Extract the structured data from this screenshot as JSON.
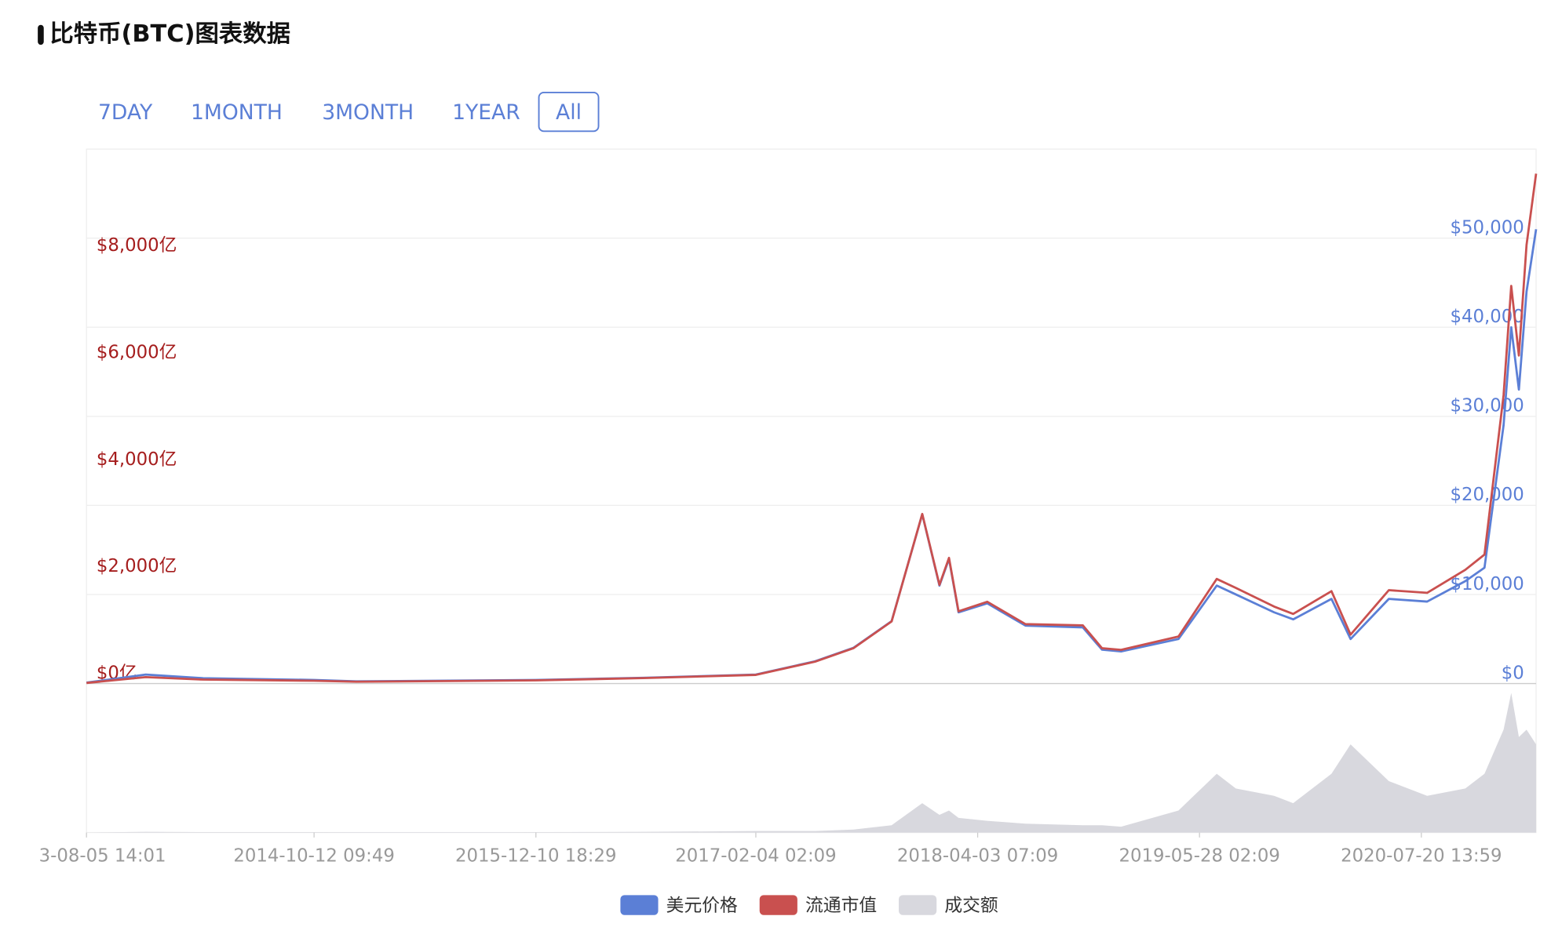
{
  "title": "比特币(BTC)图表数据",
  "tabs": [
    "7DAY",
    "1MONTH",
    "3MONTH",
    "1YEAR",
    "All"
  ],
  "active_tab": "All",
  "chart_data": {
    "type": "line",
    "x": [
      2013.59,
      2013.9,
      2014.2,
      2014.78,
      2015.0,
      2015.94,
      2016.5,
      2017.09,
      2017.4,
      2017.6,
      2017.8,
      2017.96,
      2018.05,
      2018.1,
      2018.15,
      2018.3,
      2018.5,
      2018.8,
      2018.9,
      2019.0,
      2019.3,
      2019.5,
      2019.6,
      2019.8,
      2019.9,
      2020.1,
      2020.2,
      2020.4,
      2020.6,
      2020.8,
      2020.9,
      2021.0,
      2021.04,
      2021.08,
      2021.12,
      2021.17
    ],
    "series": [
      {
        "name": "美元价格",
        "color": "#5b7fd6",
        "axis": "y2",
        "values": [
          100,
          1000,
          600,
          400,
          250,
          400,
          650,
          1000,
          2500,
          4000,
          7000,
          19000,
          11000,
          14000,
          8000,
          9000,
          6500,
          6300,
          3800,
          3600,
          5000,
          11000,
          10000,
          8000,
          7200,
          9500,
          5000,
          9500,
          9200,
          11500,
          13000,
          29000,
          40000,
          33000,
          44000,
          51000
        ]
      },
      {
        "name": "流通市值",
        "color": "#c9504f",
        "values": [
          12,
          120,
          75,
          52,
          34,
          60,
          103,
          162,
          408,
          660,
          1162,
          3173,
          1848,
          2352,
          1352,
          1530,
          1112,
          1090,
          661,
          630,
          880,
          1958,
          1790,
          1440,
          1303,
          1729,
          915,
          1748,
          1697,
          2128,
          2412,
          5394,
          7440,
          6138,
          8206,
          9540
        ]
      },
      {
        "name": "成交额",
        "color": "#d8d8de",
        "axis": "volume",
        "values": [
          0,
          0.5,
          0.3,
          0.3,
          0.2,
          0.3,
          0.5,
          1,
          1,
          2,
          5,
          20,
          12,
          15,
          10,
          8,
          6,
          5,
          5,
          4,
          15,
          40,
          30,
          25,
          20,
          40,
          60,
          35,
          25,
          30,
          40,
          70,
          95,
          65,
          70,
          60
        ]
      }
    ],
    "xlim": [
      2013.59,
      2021.17
    ],
    "xticks": [
      {
        "value": 2013.59,
        "label": "3-08-05 14:01"
      },
      {
        "value": 2014.78,
        "label": "2014-10-12 09:49"
      },
      {
        "value": 2015.94,
        "label": "2015-12-10 18:29"
      },
      {
        "value": 2017.09,
        "label": "2017-02-04 02:09"
      },
      {
        "value": 2018.25,
        "label": "2018-04-03 07:09"
      },
      {
        "value": 2019.41,
        "label": "2019-05-28 02:09"
      },
      {
        "value": 2020.57,
        "label": "2020-07-20 13:59"
      }
    ],
    "ylim": [
      0,
      10000
    ],
    "yticks": [
      {
        "value": 0,
        "label": "$0亿"
      },
      {
        "value": 2000,
        "label": "$2,000亿"
      },
      {
        "value": 4000,
        "label": "$4,000亿"
      },
      {
        "value": 6000,
        "label": "$6,000亿"
      },
      {
        "value": 8000,
        "label": "$8,000亿"
      }
    ],
    "y2lim": [
      0,
      60000
    ],
    "y2ticks": [
      {
        "value": 0,
        "label": "$0"
      },
      {
        "value": 10000,
        "label": "$10,000"
      },
      {
        "value": 20000,
        "label": "$20,000"
      },
      {
        "value": 30000,
        "label": "$30,000"
      },
      {
        "value": 40000,
        "label": "$40,000"
      },
      {
        "value": 50000,
        "label": "$50,000"
      }
    ],
    "volume_lim": [
      0,
      100
    ],
    "grid": true,
    "legend": "bottom"
  }
}
